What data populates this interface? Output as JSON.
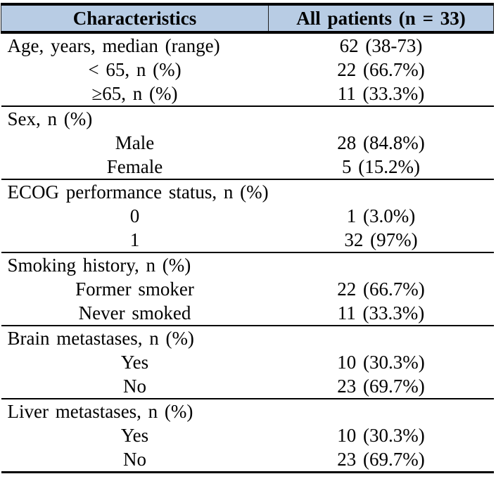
{
  "colors": {
    "header_bg": "#b8cce4",
    "border": "#000000",
    "text": "#000000"
  },
  "table": {
    "header": {
      "characteristics": "Characteristics",
      "all_patients": "All patients (n = 33)"
    },
    "sections": [
      {
        "rows": [
          {
            "label": "Age, years, median (range)",
            "value": "62 (38-73)",
            "indent": false
          },
          {
            "label": "< 65, n (%)",
            "value": "22 (66.7%)",
            "indent": true
          },
          {
            "label": "≥65, n (%)",
            "value": "11 (33.3%)",
            "indent": true
          }
        ]
      },
      {
        "rows": [
          {
            "label": "Sex, n (%)",
            "value": "",
            "indent": false
          },
          {
            "label": "Male",
            "value": "28 (84.8%)",
            "indent": true
          },
          {
            "label": "Female",
            "value": "5 (15.2%)",
            "indent": true
          }
        ]
      },
      {
        "rows": [
          {
            "label": "ECOG performance status, n (%)",
            "value": "",
            "indent": false
          },
          {
            "label": "0",
            "value": "1 (3.0%)",
            "indent": true
          },
          {
            "label": "1",
            "value": "32 (97%)",
            "indent": true
          }
        ]
      },
      {
        "rows": [
          {
            "label": "Smoking history, n (%)",
            "value": "",
            "indent": false
          },
          {
            "label": "Former smoker",
            "value": "22 (66.7%)",
            "indent": true
          },
          {
            "label": "Never smoked",
            "value": "11 (33.3%)",
            "indent": true
          }
        ]
      },
      {
        "rows": [
          {
            "label": "Brain metastases, n (%)",
            "value": "",
            "indent": false
          },
          {
            "label": "Yes",
            "value": "10 (30.3%)",
            "indent": true
          },
          {
            "label": "No",
            "value": "23 (69.7%)",
            "indent": true
          }
        ]
      },
      {
        "rows": [
          {
            "label": "Liver metastases, n (%)",
            "value": "",
            "indent": false
          },
          {
            "label": "Yes",
            "value": "10 (30.3%)",
            "indent": true
          },
          {
            "label": "No",
            "value": "23 (69.7%)",
            "indent": true
          }
        ]
      }
    ]
  }
}
